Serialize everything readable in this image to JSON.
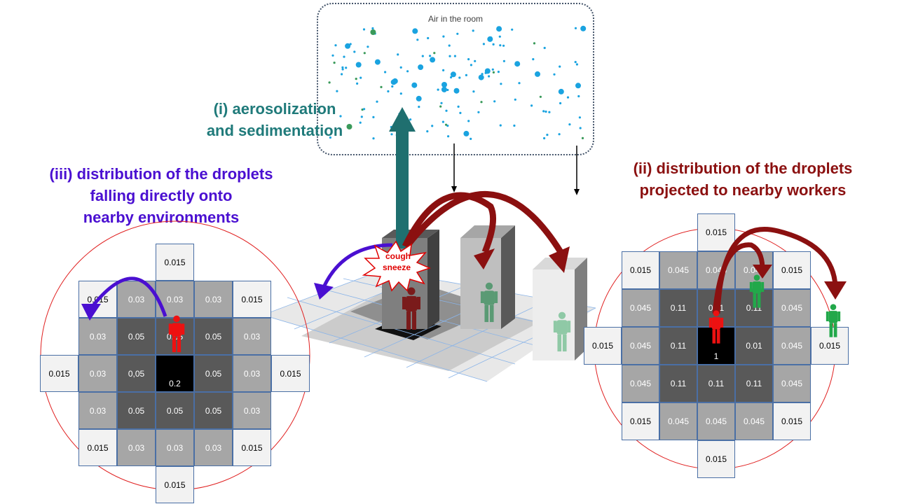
{
  "air": {
    "label": "Air in the room"
  },
  "titles": {
    "aerosolization": [
      "(i) aerosolization",
      "and sedimentation"
    ],
    "projected": [
      "(ii) distribution of the droplets",
      "projected to nearby workers"
    ],
    "falling": [
      "(iii) distribution of the droplets",
      "falling directly onto",
      "nearby environments"
    ]
  },
  "burst": {
    "line1": "cough",
    "line2": "sneeze"
  },
  "left_grid": {
    "cells": [
      {
        "v": "0.015",
        "t": "light"
      },
      {
        "v": "0.015",
        "t": "light"
      },
      {
        "v": "0.03",
        "t": "mid"
      },
      {
        "v": "0.03",
        "t": "mid"
      },
      {
        "v": "0.03",
        "t": "mid"
      },
      {
        "v": "0.015",
        "t": "light"
      },
      {
        "v": "0.03",
        "t": "mid"
      },
      {
        "v": "0.05",
        "t": "dark"
      },
      {
        "v": "0.05",
        "t": "dark"
      },
      {
        "v": "0.05",
        "t": "dark"
      },
      {
        "v": "0.03",
        "t": "mid"
      },
      {
        "v": "0.015",
        "t": "light"
      },
      {
        "v": "0.03",
        "t": "mid"
      },
      {
        "v": "0,05",
        "t": "dark"
      },
      {
        "v": "0.2",
        "t": "black"
      },
      {
        "v": "0.05",
        "t": "dark"
      },
      {
        "v": "0.03",
        "t": "mid"
      },
      {
        "v": "0.015",
        "t": "light"
      },
      {
        "v": "0.03",
        "t": "mid"
      },
      {
        "v": "0.05",
        "t": "dark"
      },
      {
        "v": "0.05",
        "t": "dark"
      },
      {
        "v": "0.05",
        "t": "dark"
      },
      {
        "v": "0.03",
        "t": "mid"
      },
      {
        "v": "0.015",
        "t": "light"
      },
      {
        "v": "0.03",
        "t": "mid"
      },
      {
        "v": "0.03",
        "t": "mid"
      },
      {
        "v": "0.03",
        "t": "mid"
      },
      {
        "v": "0.015",
        "t": "light"
      },
      {
        "v": "0.015",
        "t": "light"
      }
    ]
  },
  "right_grid": {
    "cells": [
      {
        "v": "0.015",
        "t": "light"
      },
      {
        "v": "0.015",
        "t": "light"
      },
      {
        "v": "0.045",
        "t": "mid"
      },
      {
        "v": "0.045",
        "t": "mid"
      },
      {
        "v": "0.045",
        "t": "mid"
      },
      {
        "v": "0.015",
        "t": "light"
      },
      {
        "v": "0.045",
        "t": "mid"
      },
      {
        "v": "0.11",
        "t": "dark"
      },
      {
        "v": "0.11",
        "t": "dark"
      },
      {
        "v": "0.11",
        "t": "dark"
      },
      {
        "v": "0.045",
        "t": "mid"
      },
      {
        "v": "0.015",
        "t": "light"
      },
      {
        "v": "0.045",
        "t": "mid"
      },
      {
        "v": "0.11",
        "t": "dark"
      },
      {
        "v": "1",
        "t": "black"
      },
      {
        "v": "0.01",
        "t": "dark"
      },
      {
        "v": "0.045",
        "t": "mid"
      },
      {
        "v": "0.015",
        "t": "light"
      },
      {
        "v": "0.045",
        "t": "mid"
      },
      {
        "v": "0.11",
        "t": "dark"
      },
      {
        "v": "0.11",
        "t": "dark"
      },
      {
        "v": "0.11",
        "t": "dark"
      },
      {
        "v": "0.045",
        "t": "mid"
      },
      {
        "v": "0.015",
        "t": "light"
      },
      {
        "v": "0.045",
        "t": "mid"
      },
      {
        "v": "0.045",
        "t": "mid"
      },
      {
        "v": "0.045",
        "t": "mid"
      },
      {
        "v": "0.015",
        "t": "light"
      },
      {
        "v": "0.015",
        "t": "light"
      }
    ]
  },
  "colors": {
    "teal": "#1f6f6f",
    "purple": "#4a0fd1",
    "dark_red": "#8b1010",
    "red_person": "#ee1111",
    "green_person": "#22a84a"
  }
}
